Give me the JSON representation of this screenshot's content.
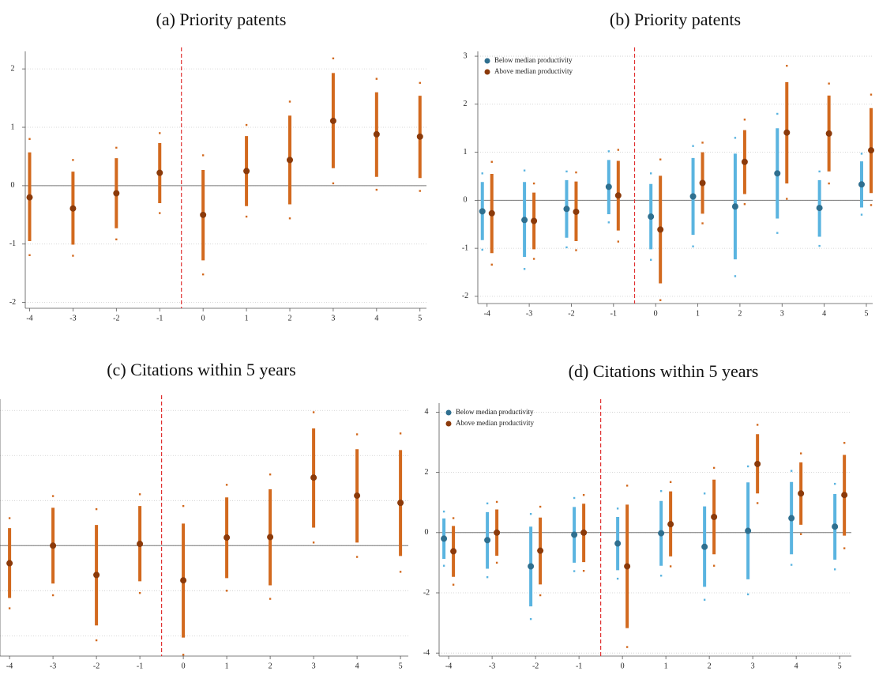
{
  "chart_data": [
    {
      "type": "errorbar",
      "title": "(a) Priority patents",
      "x": [
        -4,
        -3,
        -2,
        -1,
        0,
        1,
        2,
        3,
        4,
        5
      ],
      "xlim": [
        -4.1,
        5.15
      ],
      "xticks": [
        -4,
        -3,
        -2,
        -1,
        0,
        1,
        2,
        3,
        4,
        5
      ],
      "ylim": [
        -2.1,
        2.3
      ],
      "yticks": [
        -2,
        -1,
        0,
        1,
        2
      ],
      "grid": true,
      "vline": -0.5,
      "vline_color": "#e03030",
      "series": [
        {
          "color": "#d2691e",
          "marker_color": "#8b3a0a",
          "values": [
            -0.2,
            -0.39,
            -0.13,
            0.22,
            -0.5,
            0.25,
            0.44,
            1.11,
            0.88,
            0.84
          ],
          "ci_low": [
            -0.95,
            -1.01,
            -0.73,
            -0.3,
            -1.28,
            -0.35,
            -0.32,
            0.3,
            0.15,
            0.13
          ],
          "ci_high": [
            0.57,
            0.24,
            0.47,
            0.73,
            0.27,
            0.85,
            1.2,
            1.93,
            1.6,
            1.54
          ],
          "outer_low": [
            -1.19,
            -1.2,
            -0.92,
            -0.47,
            -1.52,
            -0.53,
            -0.56,
            0.04,
            -0.07,
            -0.09
          ],
          "outer_high": [
            0.8,
            0.44,
            0.65,
            0.9,
            0.52,
            1.04,
            1.44,
            2.18,
            1.83,
            1.76
          ]
        }
      ]
    },
    {
      "type": "errorbar",
      "title": "(b) Priority patents",
      "x": [
        -4,
        -3,
        -2,
        -1,
        0,
        1,
        2,
        3,
        4,
        5
      ],
      "xlim": [
        -4.22,
        5.15
      ],
      "xticks": [
        -4,
        -3,
        -2,
        -1,
        0,
        1,
        2,
        3,
        4,
        5
      ],
      "ylim": [
        -2.15,
        3.1
      ],
      "yticks": [
        -2,
        -1,
        0,
        1,
        2,
        3
      ],
      "grid": true,
      "vline": -0.5,
      "vline_color": "#e03030",
      "legend": "upper left",
      "series": [
        {
          "name": "Below median productivity",
          "color": "#5ab4e0",
          "marker_color": "#2f6f8f",
          "values": [
            -0.23,
            -0.41,
            -0.18,
            0.28,
            -0.34,
            0.08,
            -0.13,
            0.56,
            -0.16,
            0.33
          ],
          "ci_low": [
            -0.83,
            -1.18,
            -0.78,
            -0.29,
            -1.02,
            -0.72,
            -1.23,
            -0.38,
            -0.76,
            -0.15
          ],
          "ci_high": [
            0.38,
            0.38,
            0.42,
            0.84,
            0.34,
            0.88,
            0.97,
            1.5,
            0.42,
            0.81
          ],
          "outer_low": [
            -1.03,
            -1.43,
            -0.98,
            -0.46,
            -1.24,
            -0.96,
            -1.58,
            -0.68,
            -0.95,
            -0.3
          ],
          "outer_high": [
            0.56,
            0.62,
            0.6,
            1.02,
            0.56,
            1.13,
            1.3,
            1.8,
            0.6,
            0.97
          ]
        },
        {
          "name": "Above median productivity",
          "color": "#d2691e",
          "marker_color": "#8b3a0a",
          "values": [
            -0.27,
            -0.43,
            -0.24,
            0.1,
            -0.61,
            0.36,
            0.8,
            1.41,
            1.39,
            1.04
          ],
          "ci_low": [
            -1.1,
            -1.02,
            -0.85,
            -0.63,
            -1.73,
            -0.28,
            0.13,
            0.35,
            0.6,
            0.15
          ],
          "ci_high": [
            0.55,
            0.16,
            0.39,
            0.82,
            0.51,
            1.0,
            1.46,
            2.46,
            2.18,
            1.92
          ],
          "outer_low": [
            -1.34,
            -1.22,
            -1.04,
            -0.86,
            -2.08,
            -0.48,
            -0.08,
            0.03,
            0.35,
            -0.1
          ],
          "outer_high": [
            0.8,
            0.35,
            0.58,
            1.05,
            0.85,
            1.2,
            1.68,
            2.8,
            2.43,
            2.2
          ]
        }
      ]
    },
    {
      "type": "errorbar",
      "title": "(c) Citations within 5 years",
      "x": [
        -4,
        -3,
        -2,
        -1,
        0,
        1,
        2,
        3,
        4,
        5
      ],
      "xlim": [
        -4.22,
        5.18
      ],
      "xticks": [
        -4,
        -3,
        -2,
        -1,
        0,
        1,
        2,
        3,
        4,
        5
      ],
      "ylim": [
        -2.45,
        3.25
      ],
      "yticks": [
        -2,
        -1,
        0,
        1,
        2,
        3
      ],
      "grid": true,
      "vline": -0.5,
      "vline_color": "#e03030",
      "series": [
        {
          "color": "#d2691e",
          "marker_color": "#8b3a0a",
          "values": [
            -0.39,
            0,
            -0.65,
            0.04,
            -0.77,
            0.18,
            0.19,
            1.51,
            1.11,
            0.95
          ],
          "ci_low": [
            -1.16,
            -0.84,
            -1.77,
            -0.79,
            -2.04,
            -0.72,
            -0.88,
            0.4,
            0.07,
            -0.23
          ],
          "ci_high": [
            0.39,
            0.84,
            0.46,
            0.88,
            0.49,
            1.07,
            1.25,
            2.6,
            2.14,
            2.12
          ],
          "outer_low": [
            -1.39,
            -1.1,
            -2.1,
            -1.05,
            -2.42,
            -1.0,
            -1.18,
            0.07,
            -0.25,
            -0.58
          ],
          "outer_high": [
            0.61,
            1.1,
            0.81,
            1.14,
            0.88,
            1.35,
            1.58,
            2.96,
            2.47,
            2.49
          ]
        }
      ]
    },
    {
      "type": "errorbar",
      "title": "(d) Citations within 5 years",
      "x": [
        -4,
        -3,
        -2,
        -1,
        0,
        1,
        2,
        3,
        4,
        5
      ],
      "xlim": [
        -4.22,
        5.27
      ],
      "xticks": [
        -4,
        -3,
        -2,
        -1,
        0,
        1,
        2,
        3,
        4,
        5
      ],
      "ylim": [
        -4.1,
        4.3
      ],
      "yticks": [
        -4,
        -2,
        0,
        2,
        4
      ],
      "grid": true,
      "vline": -0.5,
      "vline_color": "#e03030",
      "legend": "upper left",
      "series": [
        {
          "name": "Below median productivity",
          "color": "#5ab4e0",
          "marker_color": "#2f6f8f",
          "values": [
            -0.2,
            -0.25,
            -1.12,
            -0.07,
            -0.36,
            -0.02,
            -0.47,
            0.06,
            0.48,
            0.2
          ],
          "ci_low": [
            -0.87,
            -1.2,
            -2.45,
            -1.0,
            -1.25,
            -1.1,
            -1.8,
            -1.55,
            -0.72,
            -0.9
          ],
          "ci_high": [
            0.47,
            0.68,
            0.2,
            0.85,
            0.52,
            1.05,
            0.87,
            1.67,
            1.68,
            1.28
          ],
          "outer_low": [
            -1.1,
            -1.48,
            -2.87,
            -1.28,
            -1.53,
            -1.43,
            -2.23,
            -2.05,
            -1.07,
            -1.22
          ],
          "outer_high": [
            0.7,
            0.97,
            0.62,
            1.15,
            0.8,
            1.38,
            1.3,
            2.2,
            2.05,
            1.62
          ]
        },
        {
          "name": "Above median productivity",
          "color": "#d2691e",
          "marker_color": "#8b3a0a",
          "values": [
            -0.62,
            0.0,
            -0.6,
            0.0,
            -1.12,
            0.28,
            0.52,
            2.28,
            1.3,
            1.25
          ],
          "ci_low": [
            -1.47,
            -0.77,
            -1.72,
            -0.98,
            -3.17,
            -0.79,
            -0.72,
            1.3,
            0.26,
            -0.1
          ],
          "ci_high": [
            0.22,
            0.77,
            0.5,
            0.96,
            0.93,
            1.37,
            1.76,
            3.27,
            2.33,
            2.58
          ],
          "outer_low": [
            -1.73,
            -1.0,
            -2.08,
            -1.27,
            -3.8,
            -1.12,
            -1.1,
            0.98,
            -0.05,
            -0.52
          ],
          "outer_high": [
            0.48,
            1.02,
            0.86,
            1.25,
            1.56,
            1.68,
            2.15,
            3.58,
            2.63,
            2.98
          ]
        }
      ]
    }
  ]
}
